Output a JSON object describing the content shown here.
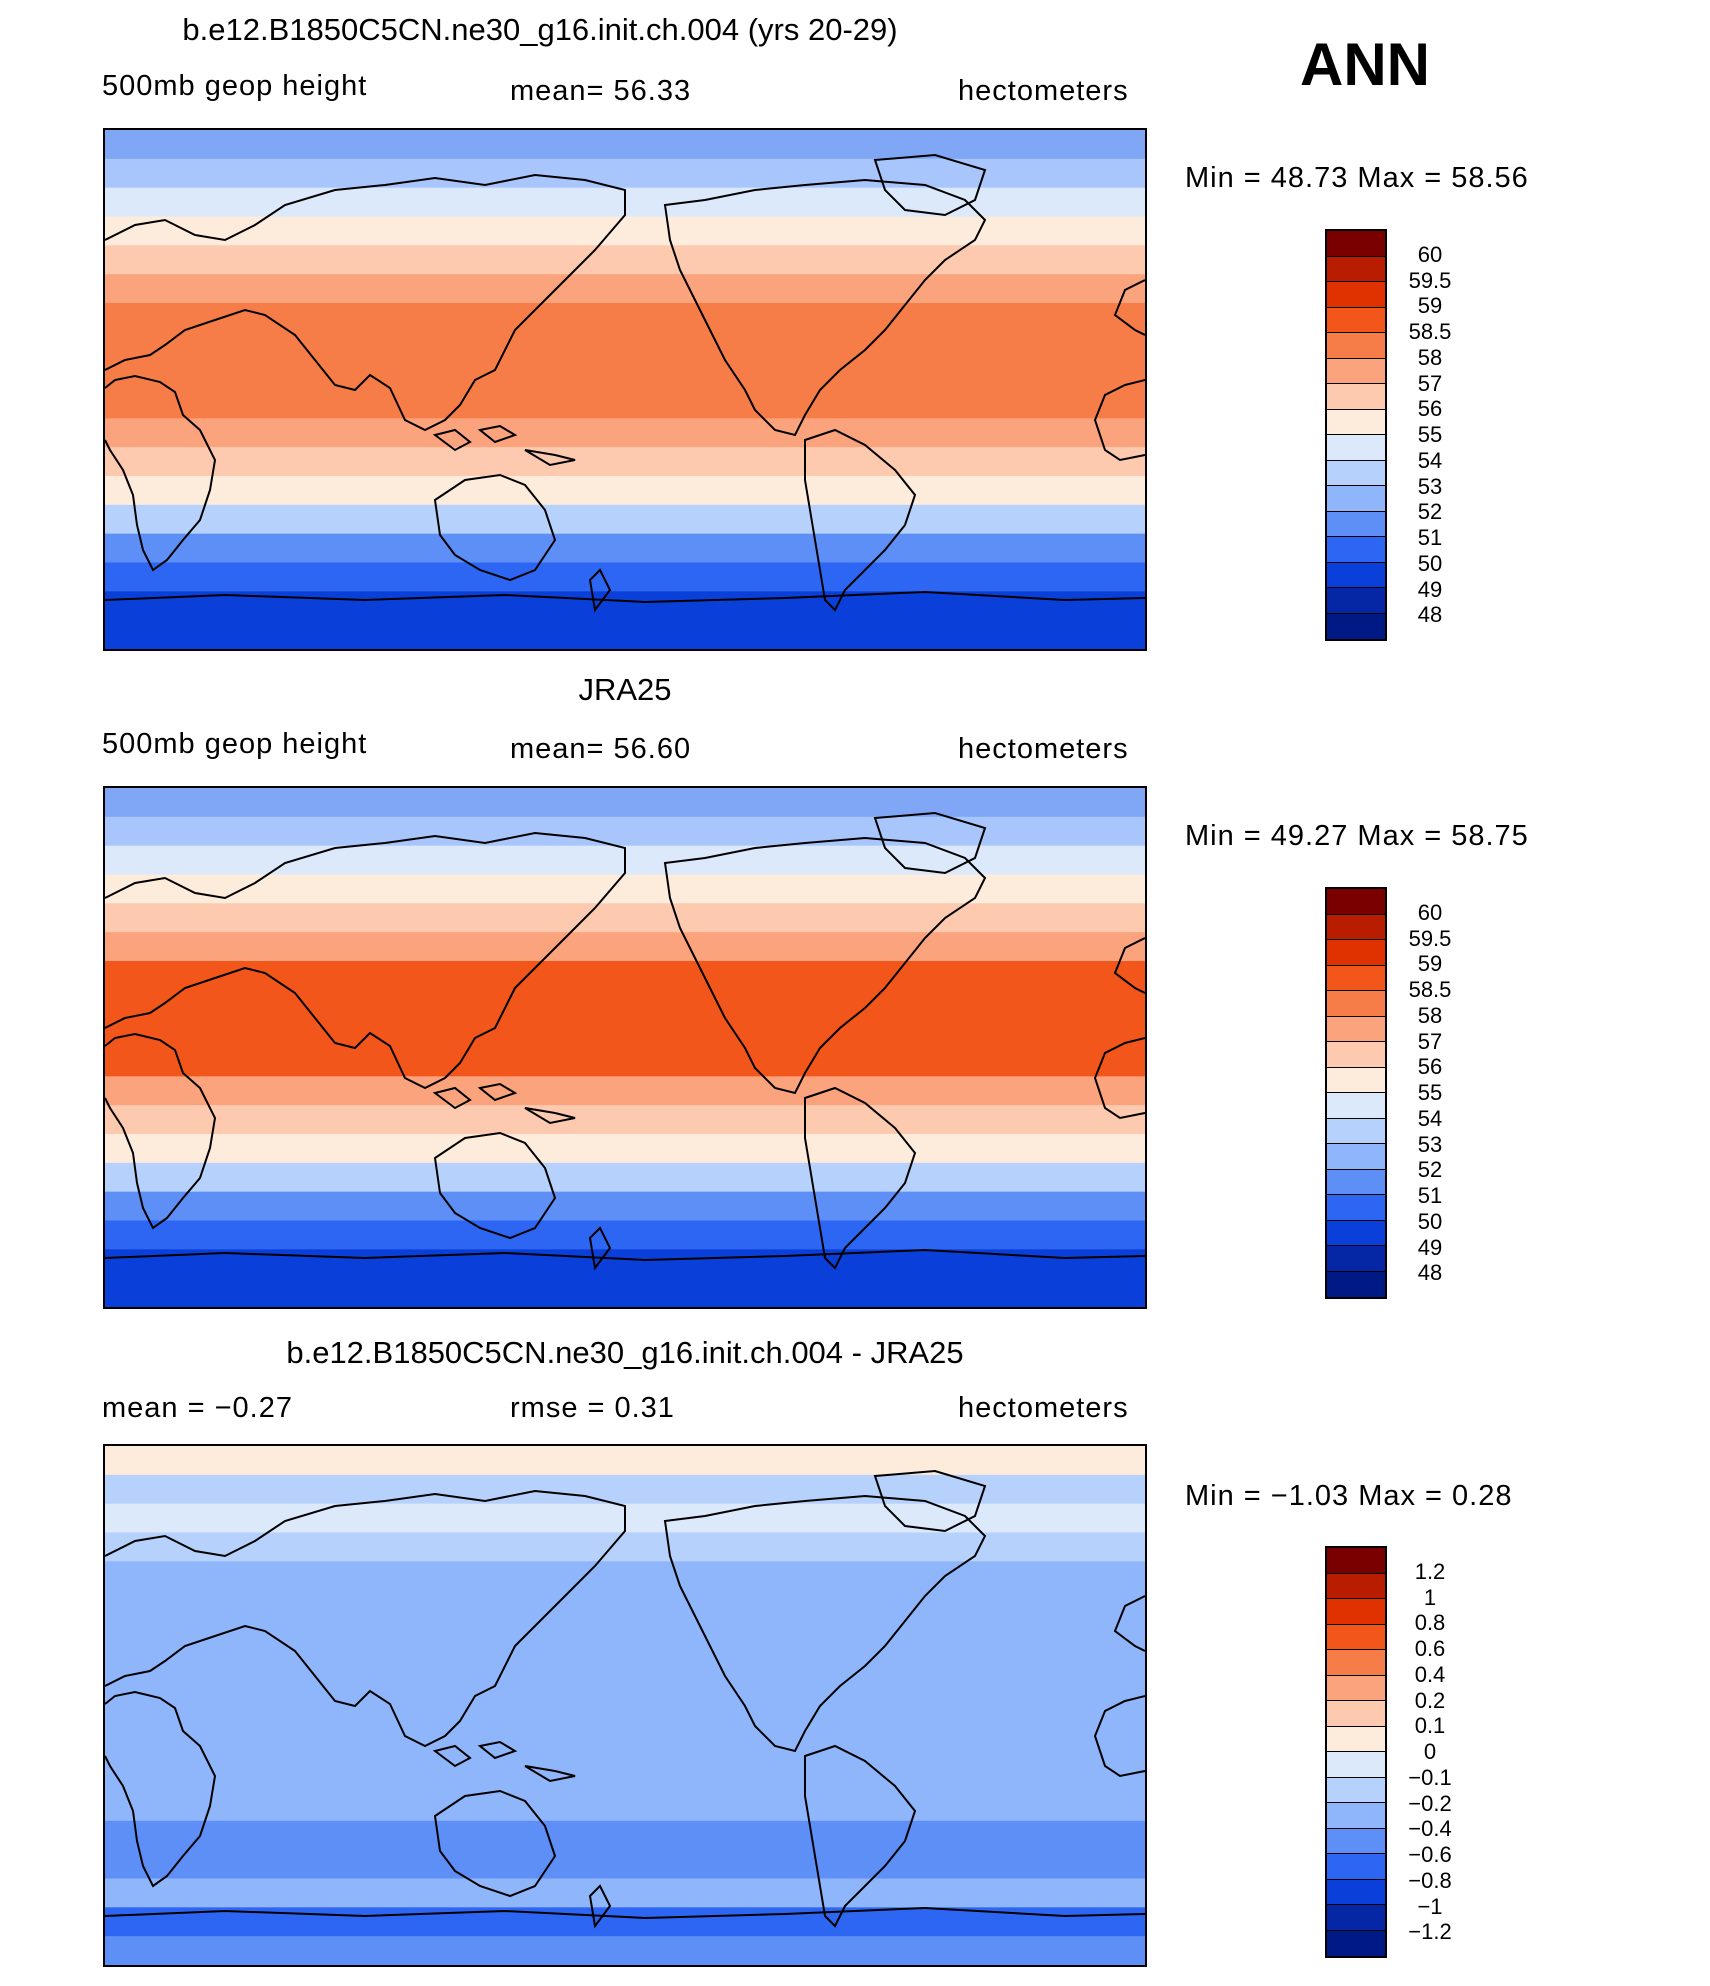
{
  "ann_label": "ANN",
  "panels": [
    {
      "title": "b.e12.B1850C5CN.ne30_g16.init.ch.004 (yrs 20-29)",
      "left_label": "500mb  geop  height",
      "center_label": "mean=   56.33",
      "units": "hectometers",
      "minmax": "Min  =    48.73  Max  =    58.56",
      "colorbar_labels": [
        "60",
        "59.5",
        "59",
        "58.5",
        "58",
        "57",
        "56",
        "55",
        "54",
        "53",
        "52",
        "51",
        "50",
        "49",
        "48"
      ],
      "colorbar_colors": [
        "#7a0000",
        "#b81d00",
        "#e03200",
        "#f2561a",
        "#f77d48",
        "#fba37d",
        "#fdcab0",
        "#fdebdc",
        "#dbe9fb",
        "#b6d1fb",
        "#8fb5fb",
        "#5d8ff7",
        "#2d66f2",
        "#0a3fd9",
        "#0527a6",
        "#001a85"
      ],
      "map_bands": [
        "#7fa7f6",
        "#a8c6fb",
        "#dbe9fb",
        "#fdebdc",
        "#fdcab0",
        "#fba37d",
        "#f77d48",
        "#f77d48",
        "#f77d48",
        "#f77d48",
        "#fba37d",
        "#fdcab0",
        "#fdebdc",
        "#b6d1fb",
        "#5d8ff7",
        "#2d66f2",
        "#0a3fd9",
        "#0a3fd9"
      ]
    },
    {
      "title": "JRA25",
      "left_label": "500mb  geop  height",
      "center_label": "mean=   56.60",
      "units": "hectometers",
      "minmax": "Min  =    49.27  Max  =    58.75",
      "colorbar_labels": [
        "60",
        "59.5",
        "59",
        "58.5",
        "58",
        "57",
        "56",
        "55",
        "54",
        "53",
        "52",
        "51",
        "50",
        "49",
        "48"
      ],
      "colorbar_colors": [
        "#7a0000",
        "#b81d00",
        "#e03200",
        "#f2561a",
        "#f77d48",
        "#fba37d",
        "#fdcab0",
        "#fdebdc",
        "#dbe9fb",
        "#b6d1fb",
        "#8fb5fb",
        "#5d8ff7",
        "#2d66f2",
        "#0a3fd9",
        "#0527a6",
        "#001a85"
      ],
      "map_bands": [
        "#7fa7f6",
        "#a8c6fb",
        "#dbe9fb",
        "#fdebdc",
        "#fdcab0",
        "#fba37d",
        "#f2561a",
        "#f2561a",
        "#f2561a",
        "#f2561a",
        "#fba37d",
        "#fdcab0",
        "#fdebdc",
        "#b6d1fb",
        "#5d8ff7",
        "#2d66f2",
        "#0a3fd9",
        "#0a3fd9"
      ]
    },
    {
      "title": "b.e12.B1850C5CN.ne30_g16.init.ch.004 - JRA25",
      "left_label": "mean  =    −0.27",
      "center_label": "rmse  =     0.31",
      "units": "hectometers",
      "minmax": "Min  =    −1.03  Max  =     0.28",
      "colorbar_labels": [
        "1.2",
        "1",
        "0.8",
        "0.6",
        "0.4",
        "0.2",
        "0.1",
        "0",
        "−0.1",
        "−0.2",
        "−0.4",
        "−0.6",
        "−0.8",
        "−1",
        "−1.2"
      ],
      "colorbar_colors": [
        "#7a0000",
        "#b81d00",
        "#e03200",
        "#f2561a",
        "#f77d48",
        "#fba37d",
        "#fdcab0",
        "#fdebdc",
        "#dbe9fb",
        "#b6d1fb",
        "#8fb5fb",
        "#5d8ff7",
        "#2d66f2",
        "#0a3fd9",
        "#0527a6",
        "#001a85"
      ],
      "map_bands": [
        "#fdebdc",
        "#b6d1fb",
        "#dbe9fb",
        "#b6d1fb",
        "#8fb5fb",
        "#8fb5fb",
        "#8fb5fb",
        "#8fb5fb",
        "#8fb5fb",
        "#8fb5fb",
        "#8fb5fb",
        "#8fb5fb",
        "#8fb5fb",
        "#5d8ff7",
        "#5d8ff7",
        "#8fb5fb",
        "#2d66f2",
        "#5d8ff7"
      ]
    }
  ]
}
